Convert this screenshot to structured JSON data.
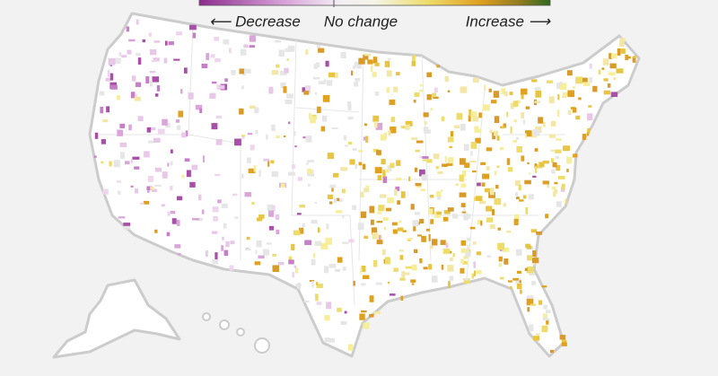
{
  "legend": {
    "decrease": "⟵ Decrease",
    "no_change": "No change",
    "increase": "Increase ⟶"
  }
}
